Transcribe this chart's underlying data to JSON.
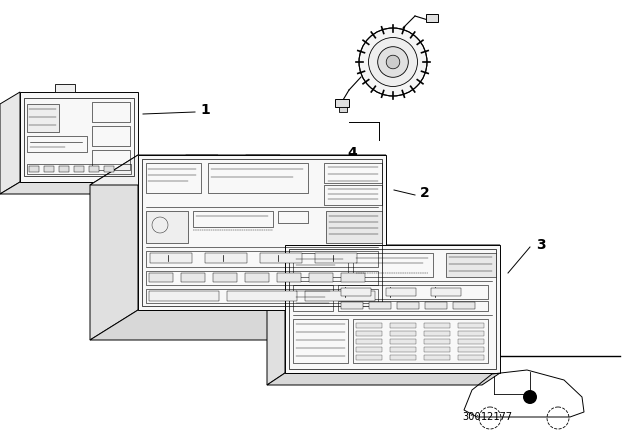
{
  "bg_color": "#ffffff",
  "diagram_id": "30012177",
  "fig_width": 6.4,
  "fig_height": 4.48,
  "dpi": 100,
  "lc": "#000000",
  "lw": 0.7,
  "fill_front": "#ffffff",
  "fill_side": "#e8e8e8",
  "fill_top": "#f0f0f0"
}
